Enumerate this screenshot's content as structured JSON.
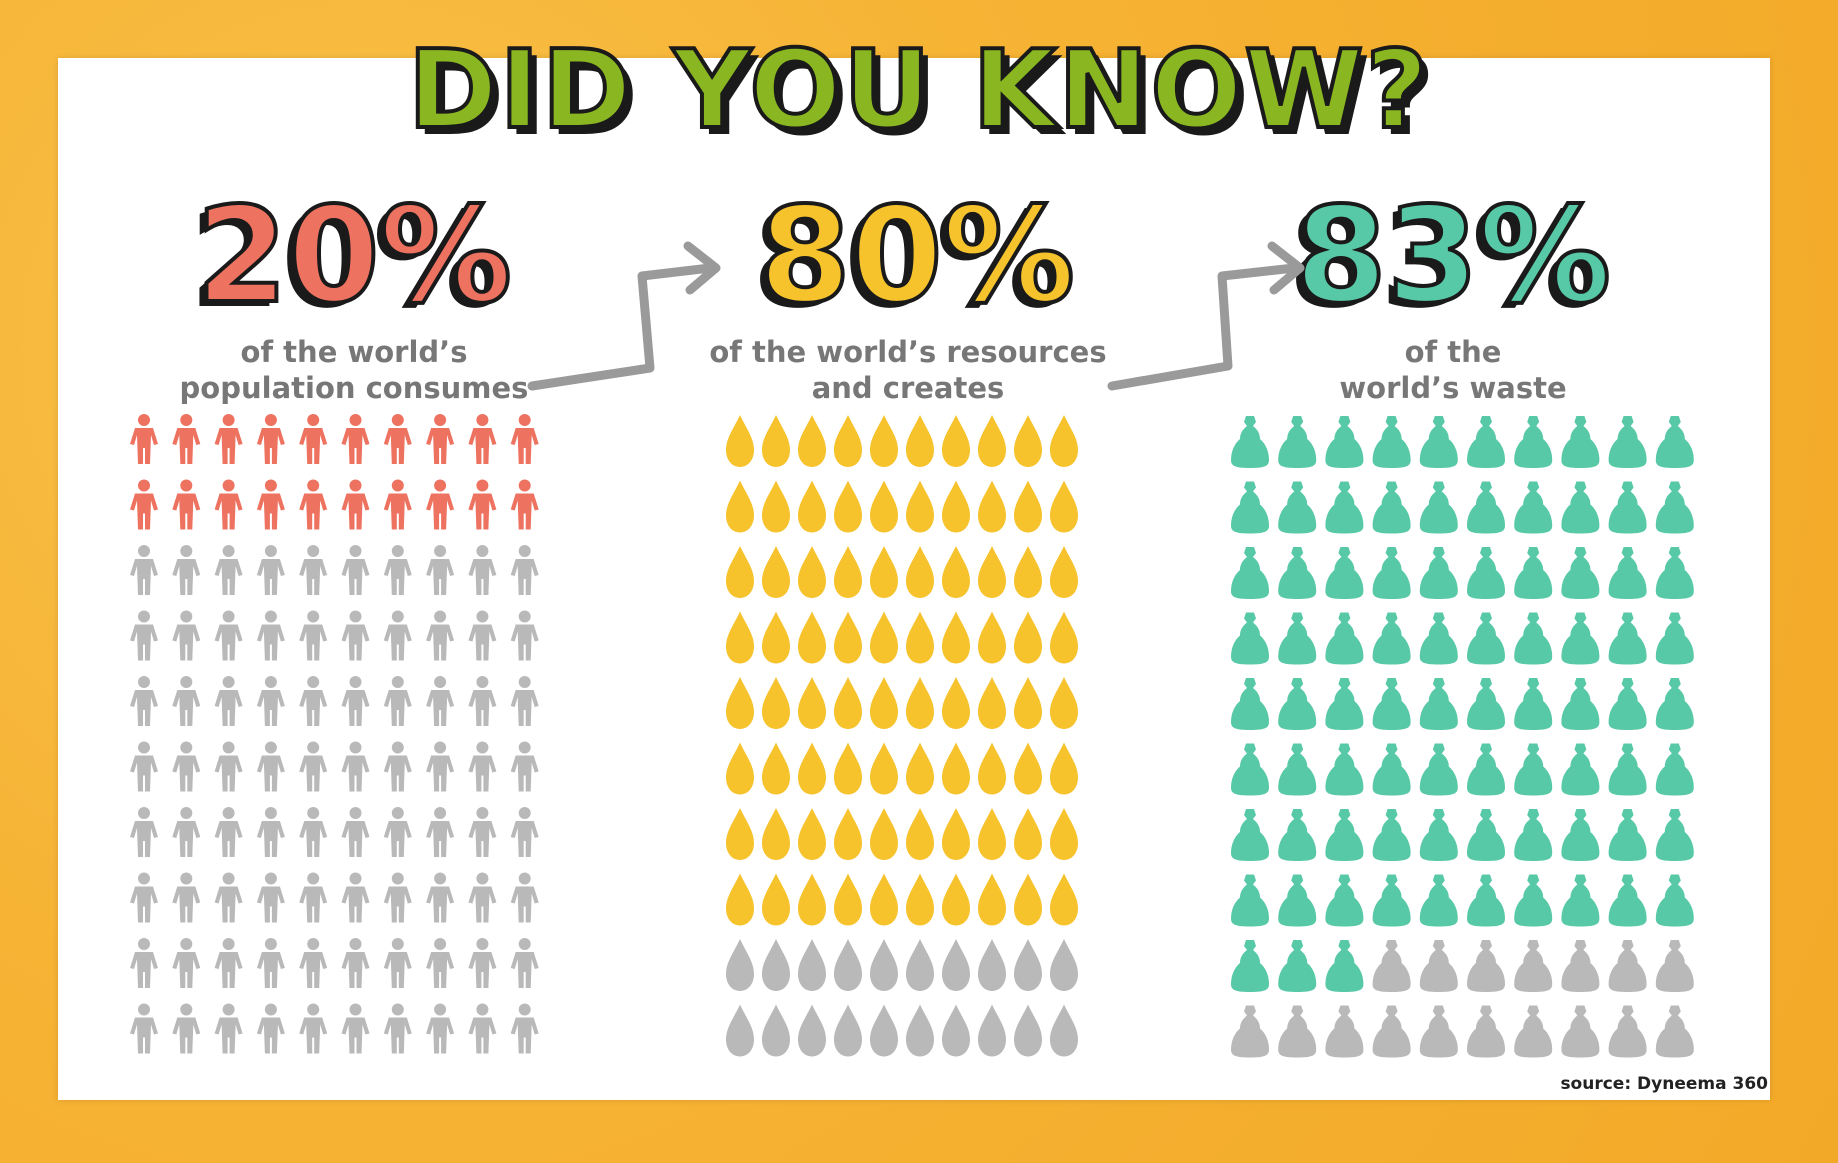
{
  "headline": "DID YOU KNOW?",
  "source": "source: Dyneema 360",
  "colors": {
    "background": "#f6b334",
    "headline": "#8ab721",
    "population": "#ee7260",
    "resources": "#f6c32d",
    "waste": "#58c9a6",
    "inactive": "#b9b9b9"
  },
  "chart_data": [
    {
      "type": "waffle",
      "icon": "person-icon",
      "value_label": "20%",
      "value": 20,
      "total": 100,
      "rows": 10,
      "cols": 10,
      "caption": [
        "of the world’s",
        "population consumes"
      ],
      "color": "#ee7260"
    },
    {
      "type": "waffle",
      "icon": "drop-icon",
      "value_label": "80%",
      "value": 80,
      "total": 100,
      "rows": 10,
      "cols": 10,
      "caption": [
        "of the world’s resources",
        "and creates"
      ],
      "color": "#f6c32d"
    },
    {
      "type": "waffle",
      "icon": "trash-bag-icon",
      "value_label": "83%",
      "value": 83,
      "total": 100,
      "rows": 10,
      "cols": 10,
      "caption": [
        "of the",
        "world’s waste"
      ],
      "color": "#58c9a6"
    }
  ]
}
